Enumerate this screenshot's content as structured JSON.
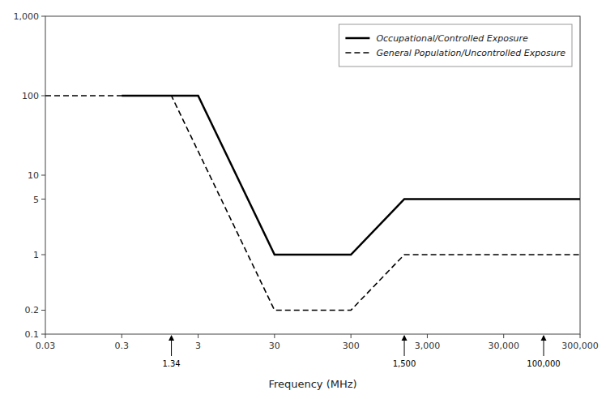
{
  "chart_data": {
    "type": "line",
    "log": true,
    "grid": false,
    "legend": "upper-right",
    "xlabel": "Frequency (MHz)",
    "xlim": [
      0.03,
      300000
    ],
    "ylim": [
      0.1,
      1000
    ],
    "xticks": [
      0.03,
      0.3,
      3,
      30,
      300,
      {
        "value": 3000,
        "label": "3,000"
      },
      {
        "value": 30000,
        "label": "30,000"
      },
      {
        "value": 300000,
        "label": "300,000"
      }
    ],
    "yticks": [
      0.1,
      0.2,
      1,
      5,
      10,
      100,
      {
        "value": 1000,
        "label": "1,000"
      }
    ],
    "series": [
      {
        "name": "Occupational/Controlled Exposure",
        "color": "black",
        "line_style": "solid",
        "x": [
          0.3,
          3,
          30,
          300,
          1500,
          300000
        ],
        "values": [
          100,
          100,
          1,
          1,
          5,
          5
        ]
      },
      {
        "name": "General Population/Uncontrolled Exposure",
        "color": "black",
        "line_style": "dashed",
        "x": [
          0.03,
          1.34,
          30,
          300,
          1500,
          300000
        ],
        "values": [
          100,
          100,
          0.2,
          0.2,
          1,
          1
        ]
      }
    ],
    "annotations": [
      {
        "x": 1.34,
        "label": "1.34"
      },
      {
        "x": 1500,
        "label": "1,500"
      },
      {
        "x": 100000,
        "label": "100,000"
      }
    ]
  }
}
